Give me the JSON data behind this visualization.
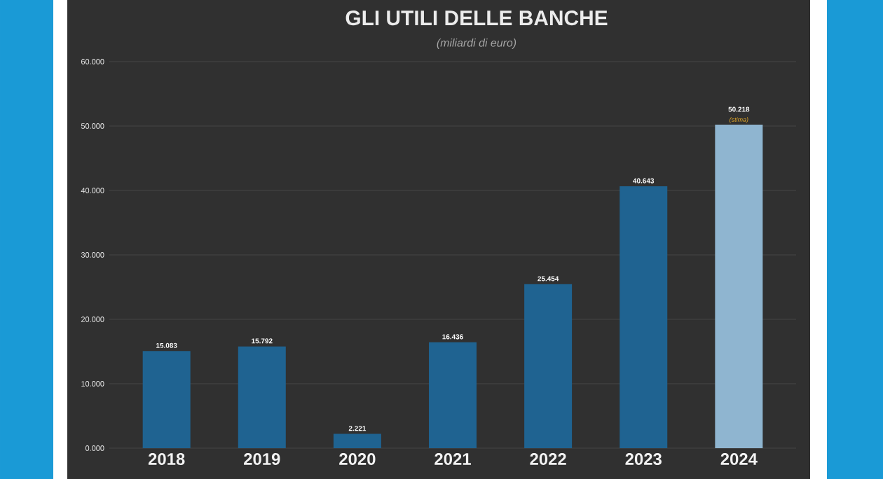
{
  "chart_data": {
    "type": "bar",
    "title": "GLI UTILI DELLE BANCHE",
    "subtitle": "(miliardi di euro)",
    "categories": [
      "2018",
      "2019",
      "2020",
      "2021",
      "2022",
      "2023",
      "2024"
    ],
    "values": [
      15.083,
      15.792,
      2.221,
      16.436,
      25.454,
      40.643,
      50.218
    ],
    "value_labels": [
      "15.083",
      "15.792",
      "2.221",
      "16.436",
      "25.454",
      "40.643",
      "50.218"
    ],
    "colors": [
      "#1f6391",
      "#1f6391",
      "#1f6391",
      "#1f6391",
      "#1f6391",
      "#1f6391",
      "#8fb5d0"
    ],
    "annotations": [
      {
        "text": "(stima)",
        "x": "2024",
        "y": 50.218
      }
    ],
    "ylim": [
      0,
      60
    ],
    "yticks": [
      {
        "value": 0,
        "label": "0.000"
      },
      {
        "value": 10,
        "label": "10.000"
      },
      {
        "value": 20,
        "label": "20.000"
      },
      {
        "value": 30,
        "label": "30.000"
      },
      {
        "value": 40,
        "label": "40.000"
      },
      {
        "value": 50,
        "label": "50.000"
      },
      {
        "value": 60,
        "label": "60.000"
      }
    ],
    "grid": "y"
  }
}
